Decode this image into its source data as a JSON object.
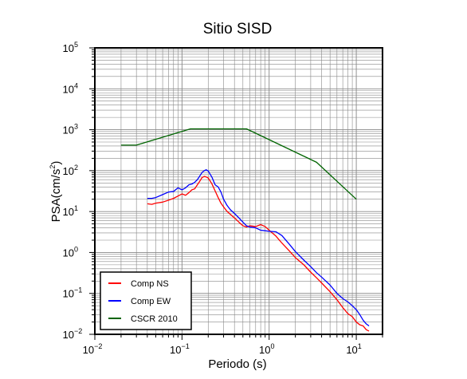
{
  "chart_data": {
    "type": "line",
    "title": "Sitio SISD",
    "xlabel": "Periodo (s)",
    "ylabel_base": "PSA(cm/s",
    "ylabel_exp": "2",
    "ylabel_end": ")",
    "x_scale": "log",
    "y_scale": "log",
    "xlim": [
      0.01,
      20
    ],
    "ylim": [
      0.01,
      100000
    ],
    "grid": true,
    "legend_position": "bottom-left",
    "x_ticks": [
      {
        "base": "10",
        "exp": "−2",
        "value": 0.01
      },
      {
        "base": "10",
        "exp": "−1",
        "value": 0.1
      },
      {
        "base": "10",
        "exp": "0",
        "value": 1
      },
      {
        "base": "10",
        "exp": "1",
        "value": 10
      }
    ],
    "y_ticks": [
      {
        "base": "10",
        "exp": "−2",
        "value": 0.01
      },
      {
        "base": "10",
        "exp": "−1",
        "value": 0.1
      },
      {
        "base": "10",
        "exp": "0",
        "value": 1
      },
      {
        "base": "10",
        "exp": "1",
        "value": 10
      },
      {
        "base": "10",
        "exp": "2",
        "value": 100
      },
      {
        "base": "10",
        "exp": "3",
        "value": 1000
      },
      {
        "base": "10",
        "exp": "4",
        "value": 10000
      },
      {
        "base": "10",
        "exp": "5",
        "value": 100000
      }
    ],
    "series": [
      {
        "name": "Comp NS",
        "color": "#ff0000",
        "points": [
          [
            0.04,
            15.5
          ],
          [
            0.045,
            15
          ],
          [
            0.05,
            16
          ],
          [
            0.06,
            17
          ],
          [
            0.07,
            19
          ],
          [
            0.08,
            21
          ],
          [
            0.09,
            24
          ],
          [
            0.1,
            27
          ],
          [
            0.11,
            25
          ],
          [
            0.12,
            29
          ],
          [
            0.13,
            34
          ],
          [
            0.14,
            36
          ],
          [
            0.15,
            45
          ],
          [
            0.16,
            55
          ],
          [
            0.17,
            68
          ],
          [
            0.18,
            72
          ],
          [
            0.19,
            70
          ],
          [
            0.2,
            66
          ],
          [
            0.22,
            48
          ],
          [
            0.24,
            32
          ],
          [
            0.26,
            22
          ],
          [
            0.28,
            16
          ],
          [
            0.3,
            13
          ],
          [
            0.33,
            10
          ],
          [
            0.36,
            8.5
          ],
          [
            0.4,
            7
          ],
          [
            0.45,
            5.5
          ],
          [
            0.5,
            4.5
          ],
          [
            0.55,
            4.2
          ],
          [
            0.6,
            4.5
          ],
          [
            0.7,
            4.3
          ],
          [
            0.8,
            4.8
          ],
          [
            0.9,
            4.3
          ],
          [
            1.0,
            3.5
          ],
          [
            1.2,
            2.5
          ],
          [
            1.4,
            1.7
          ],
          [
            1.7,
            1.1
          ],
          [
            2.0,
            0.75
          ],
          [
            2.5,
            0.5
          ],
          [
            3.0,
            0.33
          ],
          [
            3.5,
            0.24
          ],
          [
            4.0,
            0.18
          ],
          [
            5.0,
            0.11
          ],
          [
            6.0,
            0.07
          ],
          [
            7.0,
            0.045
          ],
          [
            8.0,
            0.032
          ],
          [
            9.0,
            0.027
          ],
          [
            10.0,
            0.02
          ],
          [
            11.0,
            0.017
          ],
          [
            12.0,
            0.016
          ],
          [
            13.0,
            0.013
          ],
          [
            14.0,
            0.012
          ]
        ]
      },
      {
        "name": "Comp EW",
        "color": "#0000ff",
        "points": [
          [
            0.04,
            21
          ],
          [
            0.045,
            21
          ],
          [
            0.05,
            22
          ],
          [
            0.06,
            26
          ],
          [
            0.07,
            30
          ],
          [
            0.08,
            31
          ],
          [
            0.09,
            38
          ],
          [
            0.1,
            34
          ],
          [
            0.11,
            38
          ],
          [
            0.12,
            45
          ],
          [
            0.13,
            47
          ],
          [
            0.14,
            52
          ],
          [
            0.15,
            60
          ],
          [
            0.16,
            74
          ],
          [
            0.17,
            90
          ],
          [
            0.18,
            100
          ],
          [
            0.19,
            105
          ],
          [
            0.2,
            98
          ],
          [
            0.22,
            70
          ],
          [
            0.24,
            45
          ],
          [
            0.26,
            40
          ],
          [
            0.28,
            30
          ],
          [
            0.3,
            20
          ],
          [
            0.33,
            14
          ],
          [
            0.36,
            11
          ],
          [
            0.4,
            9
          ],
          [
            0.45,
            7
          ],
          [
            0.5,
            5.5
          ],
          [
            0.55,
            4.5
          ],
          [
            0.6,
            4.2
          ],
          [
            0.7,
            4.0
          ],
          [
            0.8,
            3.5
          ],
          [
            0.9,
            3.4
          ],
          [
            1.0,
            3.3
          ],
          [
            1.2,
            3.2
          ],
          [
            1.4,
            2.6
          ],
          [
            1.7,
            1.6
          ],
          [
            2.0,
            1.05
          ],
          [
            2.5,
            0.65
          ],
          [
            3.0,
            0.45
          ],
          [
            3.5,
            0.32
          ],
          [
            4.0,
            0.25
          ],
          [
            5.0,
            0.16
          ],
          [
            6.0,
            0.1
          ],
          [
            7.0,
            0.075
          ],
          [
            8.0,
            0.062
          ],
          [
            9.0,
            0.05
          ],
          [
            10.0,
            0.04
          ],
          [
            11.0,
            0.03
          ],
          [
            12.0,
            0.022
          ],
          [
            13.0,
            0.018
          ],
          [
            14.0,
            0.016
          ]
        ]
      },
      {
        "name": "CSCR 2010",
        "color": "#006400",
        "points": [
          [
            0.02,
            420
          ],
          [
            0.03,
            420
          ],
          [
            0.125,
            1050
          ],
          [
            0.55,
            1050
          ],
          [
            3.5,
            160
          ],
          [
            10.0,
            20
          ]
        ]
      }
    ]
  }
}
